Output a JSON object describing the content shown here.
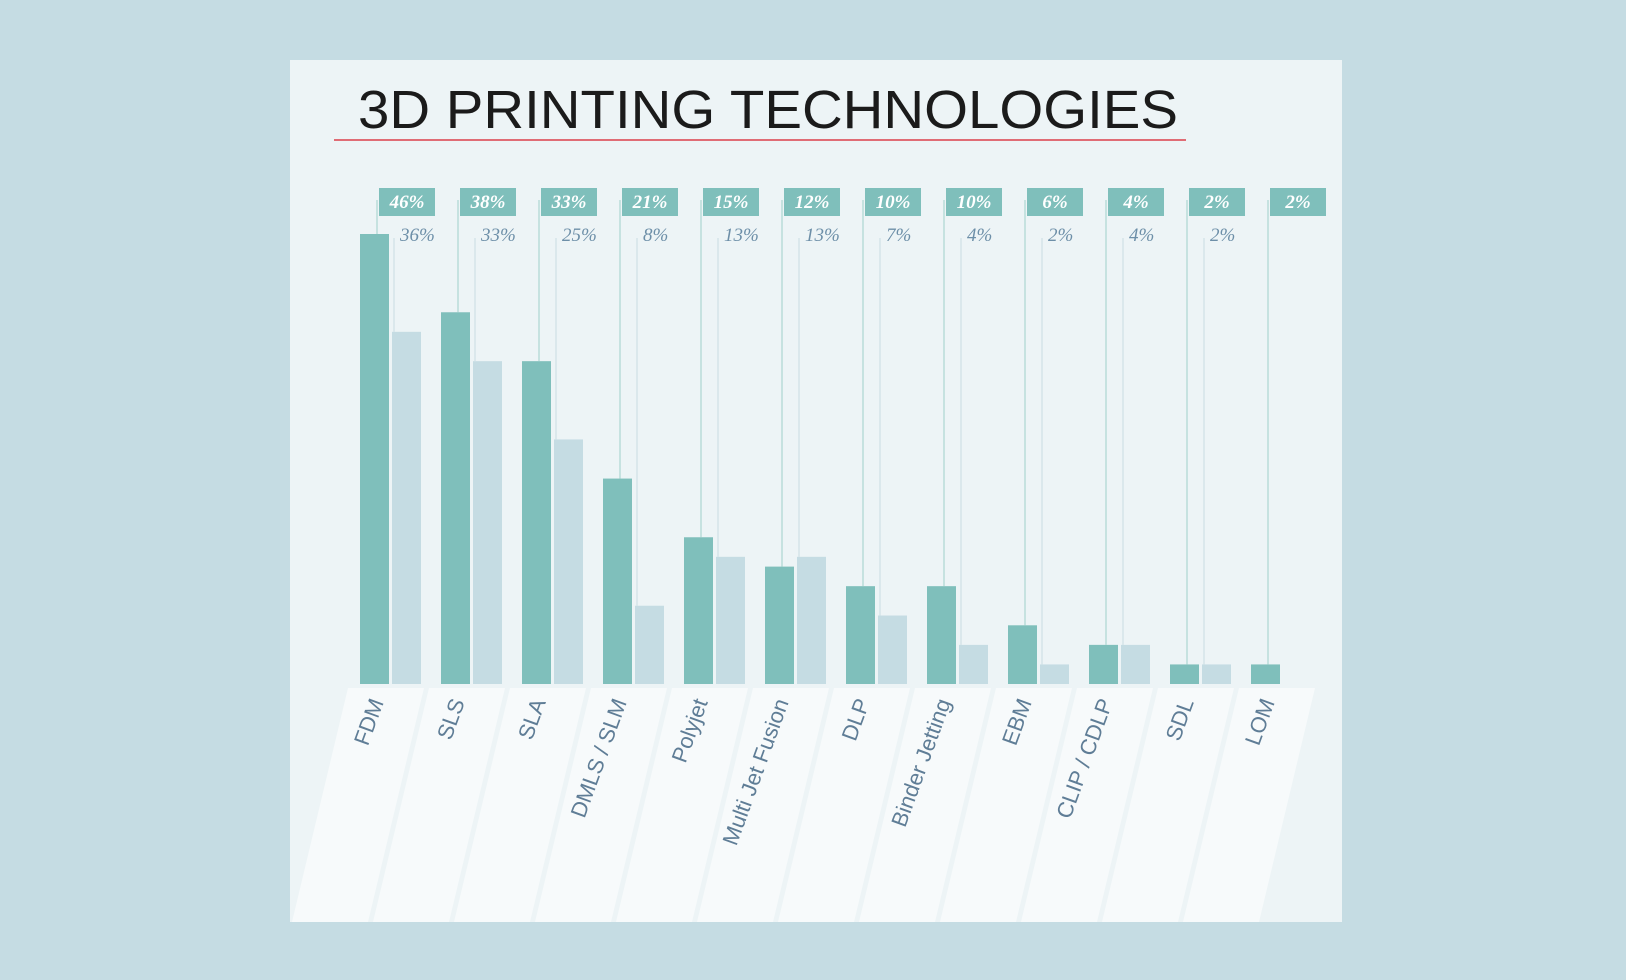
{
  "chart_data": {
    "type": "bar",
    "title": "3D PRINTING TECHNOLOGIES",
    "categories": [
      "FDM",
      "SLS",
      "SLA",
      "DMLS / SLM",
      "Polyjet",
      "Multi Jet Fusion",
      "DLP",
      "Binder Jetting",
      "EBM",
      "CLIP / CDLP",
      "SDL",
      "LOM"
    ],
    "series": [
      {
        "values": [
          46,
          38,
          33,
          21,
          15,
          12,
          10,
          10,
          6,
          4,
          2,
          2
        ],
        "labels": [
          "46%",
          "38%",
          "33%",
          "21%",
          "15%",
          "12%",
          "10%",
          "10%",
          "6%",
          "4%",
          "2%",
          "2%"
        ],
        "color": "#7fbfbb"
      },
      {
        "values": [
          36,
          33,
          25,
          8,
          13,
          13,
          7,
          4,
          2,
          4,
          2,
          null
        ],
        "labels": [
          "36%",
          "33%",
          "25%",
          "8%",
          "13%",
          "13%",
          "7%",
          "4%",
          "2%",
          "4%",
          "2%",
          null
        ],
        "color": "#c5dce3"
      }
    ],
    "ylim": [
      0,
      46
    ],
    "grid": false,
    "colors": {
      "background": "#c5dce3",
      "card": "#edf4f6",
      "title_underline": "#e06c75",
      "label_text_light": "#6d8fa8",
      "category_text": "#5f7d96"
    }
  }
}
